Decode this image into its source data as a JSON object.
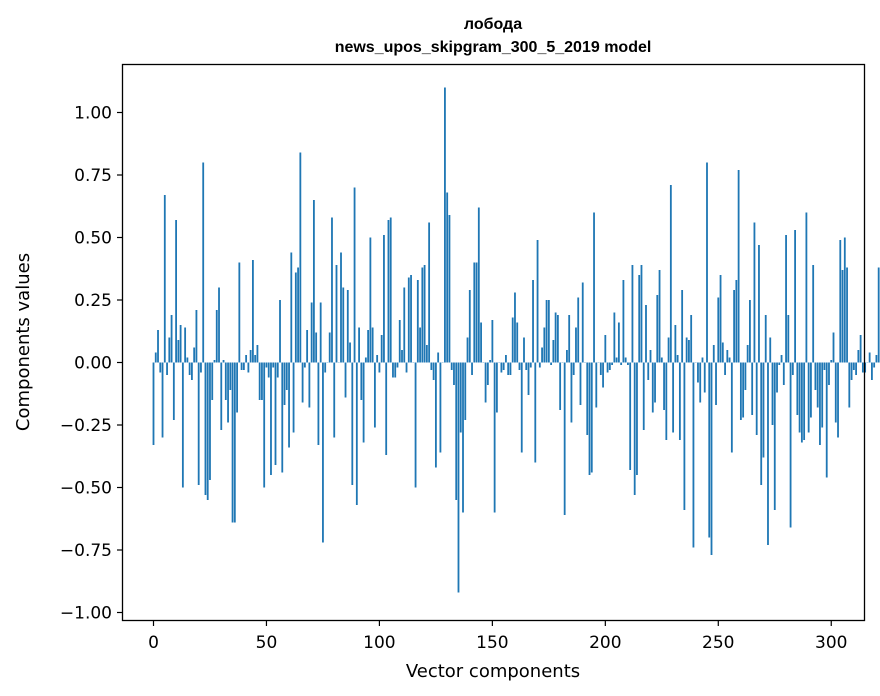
{
  "chart_data": {
    "type": "bar",
    "title": "лобода",
    "subtitle": "news_upos_skipgram_300_5_2019 model",
    "xlabel": "Vector components",
    "ylabel": "Components values",
    "xlim": [
      -13.5,
      314.5
    ],
    "ylim": [
      -1.03,
      1.19
    ],
    "xticks": [
      0,
      50,
      100,
      150,
      200,
      250,
      300
    ],
    "xtick_labels": [
      "0",
      "50",
      "100",
      "150",
      "200",
      "250",
      "300"
    ],
    "yticks": [
      1.0,
      0.75,
      0.5,
      0.25,
      0.0,
      -0.25,
      -0.5,
      -0.75,
      -1.0
    ],
    "ytick_labels": [
      "1.00",
      "0.75",
      "0.50",
      "0.25",
      "0.00",
      "−0.25",
      "−0.50",
      "−0.75",
      "−1.00"
    ],
    "grid": false,
    "bar_color": "#1f77b4",
    "values": [
      -0.33,
      0.04,
      0.13,
      -0.04,
      -0.3,
      0.67,
      -0.05,
      0.1,
      0.19,
      -0.23,
      0.57,
      0.09,
      0.15,
      -0.5,
      0.14,
      0.02,
      -0.05,
      -0.07,
      0.06,
      0.21,
      -0.49,
      -0.04,
      0.8,
      -0.53,
      -0.55,
      -0.47,
      -0.15,
      0.01,
      0.21,
      0.3,
      -0.27,
      0.01,
      -0.15,
      -0.24,
      -0.11,
      -0.64,
      -0.64,
      -0.2,
      0.4,
      -0.03,
      -0.03,
      0.03,
      -0.04,
      0.05,
      0.41,
      0.03,
      0.07,
      -0.15,
      -0.15,
      -0.5,
      -0.02,
      -0.06,
      -0.45,
      -0.02,
      -0.41,
      -0.06,
      0.25,
      -0.44,
      -0.17,
      -0.11,
      -0.34,
      0.44,
      -0.28,
      0.36,
      0.38,
      0.84,
      -0.16,
      -0.02,
      0.13,
      -0.18,
      0.24,
      0.65,
      0.12,
      -0.33,
      0.24,
      -0.72,
      -0.04,
      0.0,
      0.12,
      0.58,
      -0.3,
      0.39,
      0.0,
      0.44,
      0.3,
      -0.14,
      0.29,
      0.08,
      -0.49,
      0.7,
      -0.57,
      0.14,
      -0.15,
      -0.32,
      0.02,
      0.13,
      0.5,
      0.14,
      -0.26,
      0.03,
      -0.04,
      0.11,
      0.51,
      -0.37,
      0.57,
      0.58,
      -0.06,
      -0.06,
      -0.02,
      0.17,
      0.05,
      0.3,
      -0.04,
      0.34,
      0.35,
      0.0,
      -0.5,
      0.33,
      0.14,
      0.38,
      0.39,
      0.07,
      0.56,
      -0.03,
      -0.07,
      -0.42,
      0.04,
      -0.36,
      0.0,
      1.1,
      0.68,
      0.59,
      -0.03,
      -0.09,
      -0.55,
      -0.92,
      -0.28,
      -0.6,
      -0.23,
      0.1,
      0.29,
      -0.05,
      0.4,
      0.4,
      0.62,
      0.16,
      0.0,
      -0.16,
      -0.09,
      0.01,
      0.17,
      -0.6,
      -0.2,
      0.0,
      -0.04,
      -0.03,
      0.03,
      -0.05,
      -0.05,
      0.18,
      0.28,
      0.16,
      -0.03,
      -0.36,
      0.1,
      -0.03,
      -0.13,
      -0.02,
      0.33,
      -0.4,
      0.49,
      -0.02,
      0.06,
      0.14,
      0.25,
      0.25,
      -0.01,
      0.09,
      0.2,
      0.19,
      -0.19,
      0.0,
      -0.61,
      0.05,
      0.19,
      -0.24,
      -0.05,
      0.14,
      0.26,
      -0.17,
      0.32,
      0.0,
      -0.29,
      -0.45,
      -0.44,
      0.6,
      -0.18,
      0.0,
      -0.05,
      -0.1,
      0.11,
      -0.04,
      -0.03,
      -0.01,
      0.2,
      0.02,
      0.16,
      -0.01,
      0.33,
      0.02,
      -0.01,
      -0.43,
      0.39,
      -0.53,
      -0.45,
      0.35,
      0.39,
      -0.27,
      0.23,
      -0.07,
      0.05,
      -0.2,
      -0.16,
      0.27,
      0.37,
      0.02,
      -0.19,
      -0.31,
      0.1,
      0.71,
      -0.28,
      0.15,
      0.03,
      -0.31,
      0.29,
      -0.59,
      0.1,
      0.09,
      0.19,
      -0.74,
      0.0,
      -0.08,
      -0.16,
      0.02,
      -0.12,
      0.8,
      -0.7,
      -0.77,
      0.07,
      -0.17,
      0.26,
      0.35,
      0.08,
      -0.05,
      0.05,
      0.02,
      -0.36,
      0.29,
      0.33,
      0.77,
      -0.23,
      -0.22,
      -0.11,
      0.07,
      0.25,
      -0.21,
      0.56,
      -0.29,
      0.47,
      -0.49,
      -0.38,
      0.19,
      -0.73,
      0.1,
      -0.25,
      -0.59,
      -0.12,
      -0.01,
      0.03,
      -0.09,
      0.51,
      0.19,
      -0.66,
      -0.05,
      0.53,
      -0.21,
      -0.28,
      -0.32,
      -0.31,
      0.6,
      -0.28,
      -0.22,
      0.39,
      -0.11,
      -0.18,
      -0.33,
      -0.26,
      -0.03,
      -0.46,
      -0.09,
      0.01,
      0.12,
      -0.24,
      -0.3,
      0.49,
      0.37,
      0.5,
      0.38,
      -0.18,
      -0.07,
      -0.03,
      -0.05,
      0.05,
      0.11,
      -0.04,
      -0.04,
      0.0,
      0.04,
      -0.07,
      -0.02,
      0.03,
      0.38,
      -0.06,
      -0.03,
      -0.02
    ]
  }
}
